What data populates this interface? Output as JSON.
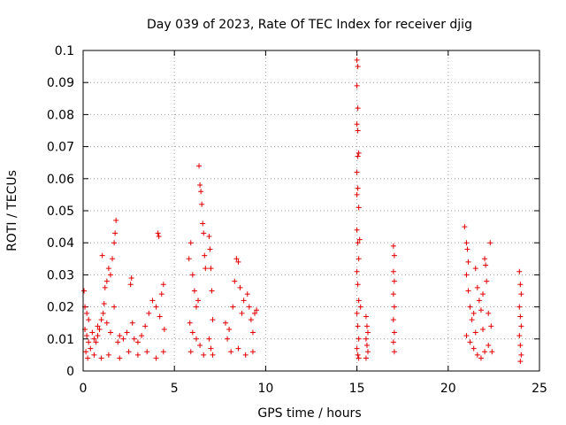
{
  "chart_data": {
    "type": "scatter",
    "title": "Day 039 of 2023, Rate Of TEC Index for receiver djig",
    "xlabel": "GPS time / hours",
    "ylabel": "ROTI / TECUs",
    "xlim": [
      0,
      25
    ],
    "ylim": [
      0,
      0.1
    ],
    "x_ticks": [
      0,
      5,
      10,
      15,
      20,
      25
    ],
    "x_tick_labels": [
      "0",
      "5",
      "10",
      "15",
      "20",
      "25"
    ],
    "y_ticks": [
      0,
      0.01,
      0.02,
      0.03,
      0.04,
      0.05,
      0.06,
      0.07,
      0.08,
      0.09,
      0.1
    ],
    "y_tick_labels": [
      "0",
      "0.01",
      "0.02",
      "0.03",
      "0.04",
      "0.05",
      "0.06",
      "0.07",
      "0.08",
      "0.09",
      "0.1"
    ],
    "grid": true,
    "marker": "plus",
    "color": "#e00000",
    "series": [
      {
        "name": "ROTI",
        "points": [
          [
            0.05,
            0.025
          ],
          [
            0.1,
            0.02
          ],
          [
            0.2,
            0.018
          ],
          [
            0.3,
            0.016
          ],
          [
            0.1,
            0.013
          ],
          [
            0.2,
            0.011
          ],
          [
            0.3,
            0.009
          ],
          [
            0.15,
            0.006
          ],
          [
            0.25,
            0.004
          ],
          [
            0.4,
            0.007
          ],
          [
            0.5,
            0.012
          ],
          [
            0.6,
            0.01
          ],
          [
            0.7,
            0.009
          ],
          [
            0.8,
            0.011
          ],
          [
            0.9,
            0.013
          ],
          [
            1.0,
            0.016
          ],
          [
            1.1,
            0.018
          ],
          [
            1.2,
            0.026
          ],
          [
            1.3,
            0.028
          ],
          [
            1.4,
            0.032
          ],
          [
            1.5,
            0.03
          ],
          [
            1.6,
            0.035
          ],
          [
            1.7,
            0.04
          ],
          [
            1.75,
            0.043
          ],
          [
            1.8,
            0.047
          ],
          [
            1.05,
            0.036
          ],
          [
            1.15,
            0.021
          ],
          [
            1.3,
            0.015
          ],
          [
            1.5,
            0.012
          ],
          [
            1.7,
            0.02
          ],
          [
            1.9,
            0.009
          ],
          [
            2.0,
            0.011
          ],
          [
            2.2,
            0.01
          ],
          [
            2.4,
            0.012
          ],
          [
            2.6,
            0.027
          ],
          [
            2.65,
            0.029
          ],
          [
            2.7,
            0.015
          ],
          [
            2.8,
            0.01
          ],
          [
            3.0,
            0.009
          ],
          [
            3.2,
            0.011
          ],
          [
            3.4,
            0.014
          ],
          [
            3.6,
            0.018
          ],
          [
            3.8,
            0.022
          ],
          [
            4.0,
            0.02
          ],
          [
            4.1,
            0.043
          ],
          [
            4.15,
            0.042
          ],
          [
            4.2,
            0.017
          ],
          [
            4.3,
            0.024
          ],
          [
            4.4,
            0.027
          ],
          [
            4.45,
            0.013
          ],
          [
            0.6,
            0.005
          ],
          [
            1.0,
            0.004
          ],
          [
            1.4,
            0.005
          ],
          [
            2.0,
            0.004
          ],
          [
            2.5,
            0.006
          ],
          [
            3.0,
            0.005
          ],
          [
            3.5,
            0.006
          ],
          [
            4.0,
            0.004
          ],
          [
            4.4,
            0.006
          ],
          [
            0.8,
            0.014
          ],
          [
            5.8,
            0.035
          ],
          [
            5.9,
            0.04
          ],
          [
            6.0,
            0.03
          ],
          [
            6.1,
            0.025
          ],
          [
            6.2,
            0.02
          ],
          [
            6.3,
            0.022
          ],
          [
            6.35,
            0.064
          ],
          [
            6.4,
            0.058
          ],
          [
            6.45,
            0.056
          ],
          [
            6.5,
            0.052
          ],
          [
            6.55,
            0.046
          ],
          [
            6.6,
            0.043
          ],
          [
            6.65,
            0.036
          ],
          [
            6.7,
            0.032
          ],
          [
            5.85,
            0.015
          ],
          [
            6.0,
            0.012
          ],
          [
            6.2,
            0.01
          ],
          [
            6.4,
            0.008
          ],
          [
            6.6,
            0.005
          ],
          [
            5.9,
            0.006
          ],
          [
            6.9,
            0.042
          ],
          [
            6.95,
            0.038
          ],
          [
            7.0,
            0.032
          ],
          [
            7.05,
            0.025
          ],
          [
            7.1,
            0.016
          ],
          [
            6.9,
            0.01
          ],
          [
            7.0,
            0.007
          ],
          [
            7.1,
            0.005
          ],
          [
            7.8,
            0.015
          ],
          [
            8.0,
            0.013
          ],
          [
            8.2,
            0.02
          ],
          [
            8.3,
            0.028
          ],
          [
            8.4,
            0.035
          ],
          [
            8.5,
            0.034
          ],
          [
            8.6,
            0.026
          ],
          [
            8.7,
            0.018
          ],
          [
            8.8,
            0.022
          ],
          [
            9.0,
            0.024
          ],
          [
            9.1,
            0.02
          ],
          [
            9.2,
            0.016
          ],
          [
            9.3,
            0.012
          ],
          [
            9.4,
            0.018
          ],
          [
            8.1,
            0.006
          ],
          [
            8.5,
            0.007
          ],
          [
            8.9,
            0.005
          ],
          [
            9.3,
            0.006
          ],
          [
            9.5,
            0.019
          ],
          [
            7.9,
            0.01
          ],
          [
            15.0,
            0.097
          ],
          [
            15.05,
            0.095
          ],
          [
            15.0,
            0.089
          ],
          [
            15.05,
            0.082
          ],
          [
            15.0,
            0.077
          ],
          [
            15.05,
            0.075
          ],
          [
            15.1,
            0.068
          ],
          [
            15.05,
            0.067
          ],
          [
            15.0,
            0.062
          ],
          [
            15.0,
            0.055
          ],
          [
            15.05,
            0.057
          ],
          [
            15.1,
            0.051
          ],
          [
            15.0,
            0.044
          ],
          [
            15.05,
            0.04
          ],
          [
            15.1,
            0.035
          ],
          [
            15.0,
            0.031
          ],
          [
            15.05,
            0.027
          ],
          [
            15.1,
            0.022
          ],
          [
            15.0,
            0.018
          ],
          [
            15.05,
            0.014
          ],
          [
            15.1,
            0.01
          ],
          [
            15.0,
            0.007
          ],
          [
            15.05,
            0.005
          ],
          [
            15.15,
            0.041
          ],
          [
            15.2,
            0.02
          ],
          [
            15.1,
            0.004
          ],
          [
            15.5,
            0.017
          ],
          [
            15.55,
            0.014
          ],
          [
            15.6,
            0.012
          ],
          [
            15.5,
            0.01
          ],
          [
            15.55,
            0.008
          ],
          [
            15.6,
            0.006
          ],
          [
            15.5,
            0.004
          ],
          [
            17.0,
            0.039
          ],
          [
            17.05,
            0.036
          ],
          [
            17.0,
            0.031
          ],
          [
            17.05,
            0.028
          ],
          [
            17.0,
            0.024
          ],
          [
            17.05,
            0.02
          ],
          [
            17.0,
            0.016
          ],
          [
            17.05,
            0.012
          ],
          [
            17.0,
            0.009
          ],
          [
            17.05,
            0.006
          ],
          [
            20.9,
            0.045
          ],
          [
            21.0,
            0.04
          ],
          [
            21.05,
            0.038
          ],
          [
            21.1,
            0.034
          ],
          [
            21.0,
            0.03
          ],
          [
            21.1,
            0.025
          ],
          [
            21.2,
            0.02
          ],
          [
            21.3,
            0.016
          ],
          [
            21.4,
            0.018
          ],
          [
            21.5,
            0.032
          ],
          [
            21.6,
            0.026
          ],
          [
            21.7,
            0.022
          ],
          [
            21.8,
            0.019
          ],
          [
            21.9,
            0.024
          ],
          [
            22.0,
            0.035
          ],
          [
            22.05,
            0.033
          ],
          [
            22.1,
            0.028
          ],
          [
            22.2,
            0.018
          ],
          [
            22.3,
            0.04
          ],
          [
            22.35,
            0.014
          ],
          [
            21.0,
            0.011
          ],
          [
            21.2,
            0.009
          ],
          [
            21.4,
            0.007
          ],
          [
            21.6,
            0.005
          ],
          [
            21.8,
            0.004
          ],
          [
            22.0,
            0.006
          ],
          [
            22.2,
            0.008
          ],
          [
            22.4,
            0.006
          ],
          [
            21.5,
            0.012
          ],
          [
            21.9,
            0.013
          ],
          [
            23.9,
            0.031
          ],
          [
            23.95,
            0.027
          ],
          [
            24.0,
            0.024
          ],
          [
            23.9,
            0.02
          ],
          [
            23.95,
            0.017
          ],
          [
            24.0,
            0.014
          ],
          [
            23.9,
            0.011
          ],
          [
            23.95,
            0.008
          ],
          [
            24.0,
            0.005
          ],
          [
            23.95,
            0.003
          ]
        ]
      }
    ]
  }
}
